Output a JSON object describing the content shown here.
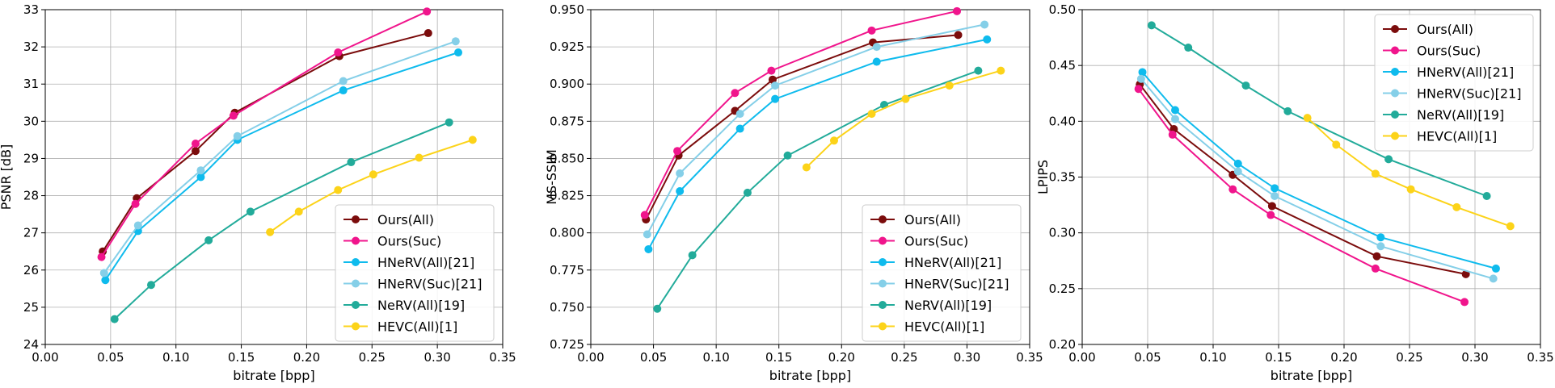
{
  "chart_data": [
    {
      "type": "line",
      "xlabel": "bitrate [bpp]",
      "ylabel": "PSNR [dB]",
      "xlim": [
        0,
        0.35
      ],
      "ylim": [
        24,
        33
      ],
      "xticks": [
        "0.00",
        "0.05",
        "0.10",
        "0.15",
        "0.20",
        "0.25",
        "0.30",
        "0.35"
      ],
      "yticks": [
        "24",
        "25",
        "26",
        "27",
        "28",
        "29",
        "30",
        "31",
        "32",
        "33"
      ],
      "grid": true,
      "legend_position": "lower-right",
      "series": [
        {
          "name": "Ours(All)",
          "color": "#7b0c0c",
          "points": [
            [
              0.044,
              26.5
            ],
            [
              0.07,
              27.93
            ],
            [
              0.115,
              29.2
            ],
            [
              0.145,
              30.23
            ],
            [
              0.225,
              31.75
            ],
            [
              0.293,
              32.37
            ]
          ]
        },
        {
          "name": "Ours(Suc)",
          "color": "#f0158c",
          "points": [
            [
              0.043,
              26.35
            ],
            [
              0.069,
              27.78
            ],
            [
              0.115,
              29.4
            ],
            [
              0.144,
              30.15
            ],
            [
              0.224,
              31.85
            ],
            [
              0.292,
              32.95
            ]
          ]
        },
        {
          "name": "HNeRV(All)[21]",
          "color": "#0fbbed",
          "points": [
            [
              0.046,
              25.73
            ],
            [
              0.071,
              27.05
            ],
            [
              0.119,
              28.5
            ],
            [
              0.147,
              29.5
            ],
            [
              0.228,
              30.83
            ],
            [
              0.316,
              31.85
            ]
          ]
        },
        {
          "name": "HNeRV(Suc)[21]",
          "color": "#85cfe8",
          "points": [
            [
              0.045,
              25.92
            ],
            [
              0.071,
              27.2
            ],
            [
              0.119,
              28.68
            ],
            [
              0.147,
              29.6
            ],
            [
              0.228,
              31.08
            ],
            [
              0.314,
              32.15
            ]
          ]
        },
        {
          "name": "NeRV(All)[19]",
          "color": "#22ab9a",
          "points": [
            [
              0.053,
              24.68
            ],
            [
              0.081,
              25.6
            ],
            [
              0.125,
              26.8
            ],
            [
              0.157,
              27.57
            ],
            [
              0.234,
              28.9
            ],
            [
              0.309,
              29.97
            ]
          ]
        },
        {
          "name": "HEVC(All)[1]",
          "color": "#fcd319",
          "points": [
            [
              0.172,
              27.02
            ],
            [
              0.194,
              27.57
            ],
            [
              0.224,
              28.15
            ],
            [
              0.251,
              28.57
            ],
            [
              0.286,
              29.02
            ],
            [
              0.327,
              29.5
            ]
          ]
        }
      ]
    },
    {
      "type": "line",
      "xlabel": "bitrate [bpp]",
      "ylabel": "MS-SSIM",
      "xlim": [
        0,
        0.35
      ],
      "ylim": [
        0.725,
        0.95
      ],
      "xticks": [
        "0.00",
        "0.05",
        "0.10",
        "0.15",
        "0.20",
        "0.25",
        "0.30",
        "0.35"
      ],
      "yticks": [
        "0.725",
        "0.750",
        "0.775",
        "0.800",
        "0.825",
        "0.850",
        "0.875",
        "0.900",
        "0.925",
        "0.950"
      ],
      "grid": true,
      "legend_position": "lower-right",
      "series": [
        {
          "name": "Ours(All)",
          "color": "#7b0c0c",
          "points": [
            [
              0.044,
              0.809
            ],
            [
              0.07,
              0.852
            ],
            [
              0.115,
              0.882
            ],
            [
              0.145,
              0.903
            ],
            [
              0.225,
              0.928
            ],
            [
              0.293,
              0.933
            ]
          ]
        },
        {
          "name": "Ours(Suc)",
          "color": "#f0158c",
          "points": [
            [
              0.043,
              0.812
            ],
            [
              0.069,
              0.855
            ],
            [
              0.115,
              0.894
            ],
            [
              0.144,
              0.909
            ],
            [
              0.224,
              0.936
            ],
            [
              0.292,
              0.949
            ]
          ]
        },
        {
          "name": "HNeRV(All)[21]",
          "color": "#0fbbed",
          "points": [
            [
              0.046,
              0.789
            ],
            [
              0.071,
              0.828
            ],
            [
              0.119,
              0.87
            ],
            [
              0.147,
              0.89
            ],
            [
              0.228,
              0.915
            ],
            [
              0.316,
              0.93
            ]
          ]
        },
        {
          "name": "HNeRV(Suc)[21]",
          "color": "#85cfe8",
          "points": [
            [
              0.045,
              0.799
            ],
            [
              0.071,
              0.84
            ],
            [
              0.119,
              0.88
            ],
            [
              0.147,
              0.899
            ],
            [
              0.228,
              0.925
            ],
            [
              0.314,
              0.94
            ]
          ]
        },
        {
          "name": "NeRV(All)[19]",
          "color": "#22ab9a",
          "points": [
            [
              0.053,
              0.749
            ],
            [
              0.081,
              0.785
            ],
            [
              0.125,
              0.827
            ],
            [
              0.157,
              0.852
            ],
            [
              0.234,
              0.886
            ],
            [
              0.309,
              0.909
            ]
          ]
        },
        {
          "name": "HEVC(All)[1]",
          "color": "#fcd319",
          "points": [
            [
              0.172,
              0.844
            ],
            [
              0.194,
              0.862
            ],
            [
              0.224,
              0.88
            ],
            [
              0.251,
              0.89
            ],
            [
              0.286,
              0.899
            ],
            [
              0.327,
              0.909
            ]
          ]
        }
      ]
    },
    {
      "type": "line",
      "xlabel": "bitrate [bpp]",
      "ylabel": "LPIPS",
      "xlim": [
        0,
        0.35
      ],
      "ylim": [
        0.2,
        0.5
      ],
      "xticks": [
        "0.00",
        "0.05",
        "0.10",
        "0.15",
        "0.20",
        "0.25",
        "0.30",
        "0.35"
      ],
      "yticks": [
        "0.20",
        "0.25",
        "0.30",
        "0.35",
        "0.40",
        "0.45",
        "0.50"
      ],
      "grid": true,
      "legend_position": "upper-right",
      "series": [
        {
          "name": "Ours(All)",
          "color": "#7b0c0c",
          "points": [
            [
              0.044,
              0.433
            ],
            [
              0.07,
              0.393
            ],
            [
              0.115,
              0.352
            ],
            [
              0.145,
              0.324
            ],
            [
              0.225,
              0.279
            ],
            [
              0.293,
              0.263
            ]
          ]
        },
        {
          "name": "Ours(Suc)",
          "color": "#f0158c",
          "points": [
            [
              0.043,
              0.429
            ],
            [
              0.069,
              0.388
            ],
            [
              0.115,
              0.339
            ],
            [
              0.144,
              0.316
            ],
            [
              0.224,
              0.268
            ],
            [
              0.292,
              0.238
            ]
          ]
        },
        {
          "name": "HNeRV(All)[21]",
          "color": "#0fbbed",
          "points": [
            [
              0.046,
              0.444
            ],
            [
              0.071,
              0.41
            ],
            [
              0.119,
              0.362
            ],
            [
              0.147,
              0.34
            ],
            [
              0.228,
              0.296
            ],
            [
              0.316,
              0.268
            ]
          ]
        },
        {
          "name": "HNeRV(Suc)[21]",
          "color": "#85cfe8",
          "points": [
            [
              0.045,
              0.438
            ],
            [
              0.071,
              0.402
            ],
            [
              0.119,
              0.355
            ],
            [
              0.147,
              0.333
            ],
            [
              0.228,
              0.288
            ],
            [
              0.314,
              0.259
            ]
          ]
        },
        {
          "name": "NeRV(All)[19]",
          "color": "#22ab9a",
          "points": [
            [
              0.053,
              0.486
            ],
            [
              0.081,
              0.466
            ],
            [
              0.125,
              0.432
            ],
            [
              0.157,
              0.409
            ],
            [
              0.234,
              0.366
            ],
            [
              0.309,
              0.333
            ]
          ]
        },
        {
          "name": "HEVC(All)[1]",
          "color": "#fcd319",
          "points": [
            [
              0.172,
              0.403
            ],
            [
              0.194,
              0.379
            ],
            [
              0.224,
              0.353
            ],
            [
              0.251,
              0.339
            ],
            [
              0.286,
              0.323
            ],
            [
              0.327,
              0.306
            ]
          ]
        }
      ]
    }
  ]
}
